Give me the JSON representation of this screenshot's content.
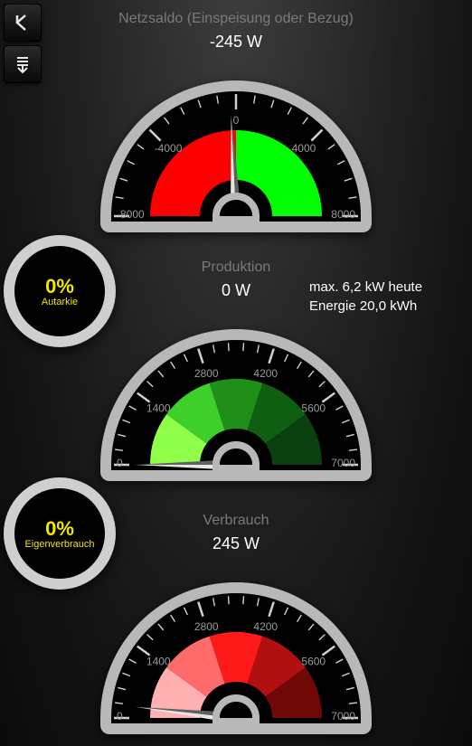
{
  "colors": {
    "bezel": "#b8b8b8",
    "face": "#000000",
    "tick": "#d0d0d0",
    "tick_label": "#9a9a9a",
    "title": "#7a7a7a",
    "value": "#ffffff",
    "ring_text": "#f2e600",
    "needle_light": "#e6e6e6",
    "needle_dark": "#606060"
  },
  "net": {
    "title": "Netzsaldo (Einspeisung oder Bezug)",
    "value_label": "-245 W",
    "gauge": {
      "min": -8000,
      "max": 8000,
      "value": -245,
      "major_step": 4000,
      "minor_ticks": 5,
      "segments": [
        {
          "from": -8000,
          "to": 0,
          "color": "#ff0000"
        },
        {
          "from": 0,
          "to": 8000,
          "color": "#00ff00"
        }
      ],
      "scale_labels": [
        -8000,
        -4000,
        0,
        4000,
        8000
      ]
    }
  },
  "prod": {
    "title": "Produktion",
    "value_label": "0 W",
    "info1": "max. 6,2 kW heute",
    "info2": "Energie 20,0 kWh",
    "gauge": {
      "min": 0,
      "max": 7000,
      "value": 0,
      "major_step": 1400,
      "minor_ticks": 5,
      "segments": [
        {
          "from": 0,
          "to": 1400,
          "color": "#8fff4a"
        },
        {
          "from": 1400,
          "to": 2800,
          "color": "#3ecf2a"
        },
        {
          "from": 2800,
          "to": 4200,
          "color": "#1f8f1a"
        },
        {
          "from": 4200,
          "to": 5600,
          "color": "#0f5f12"
        },
        {
          "from": 5600,
          "to": 7000,
          "color": "#0a4010"
        }
      ],
      "scale_labels": [
        0,
        1400,
        2800,
        4200,
        5600,
        7000
      ]
    }
  },
  "cons": {
    "title": "Verbrauch",
    "value_label": "245 W",
    "gauge": {
      "min": 0,
      "max": 7000,
      "value": 245,
      "major_step": 1400,
      "minor_ticks": 5,
      "segments": [
        {
          "from": 0,
          "to": 1400,
          "color": "#ffb0b0"
        },
        {
          "from": 1400,
          "to": 2800,
          "color": "#ff6a6a"
        },
        {
          "from": 2800,
          "to": 4200,
          "color": "#ff1a1a"
        },
        {
          "from": 4200,
          "to": 5600,
          "color": "#b01010"
        },
        {
          "from": 5600,
          "to": 7000,
          "color": "#700808"
        }
      ],
      "scale_labels": [
        0,
        1400,
        2800,
        4200,
        5600,
        7000
      ]
    }
  },
  "autarkie": {
    "value": "0%",
    "label": "Autarkie"
  },
  "eigen": {
    "value": "0%",
    "label": "Eigenverbrauch"
  }
}
